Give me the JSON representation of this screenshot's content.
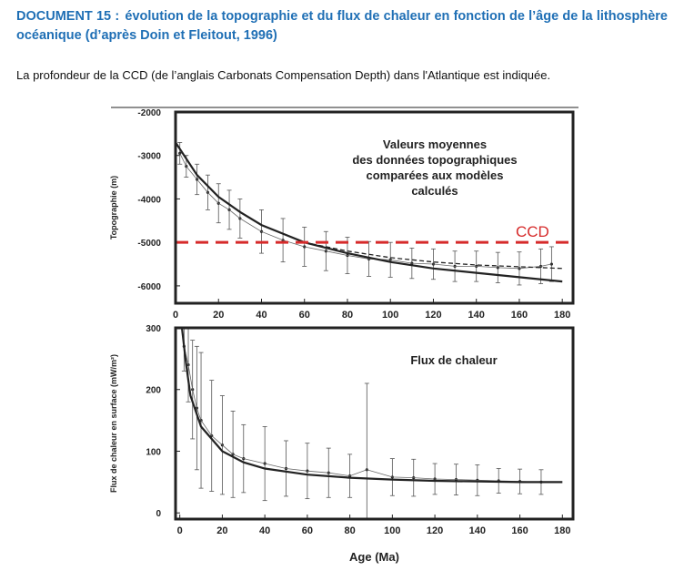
{
  "document": {
    "label": "DOCUMENT 15 :",
    "title": "évolution de la topographie et du flux de chaleur en fonction de l’âge de la lithosphère océanique (d’après Doin et Fleitout, 1996)",
    "intro": "La profondeur de la CCD (de l’anglais Carbonats Compensation Depth) dans l'Atlantique est indiquée."
  },
  "colors": {
    "title": "#1f6fb5",
    "ccd": "#d62b2b",
    "ink": "#222222"
  },
  "chart_data": [
    {
      "type": "line",
      "panel": "top",
      "title": "",
      "annotation": [
        "Valeurs moyennes",
        "des données topographiques",
        "comparées aux modèles",
        "calculés"
      ],
      "xlabel": "",
      "ylabel": "Topographie (m)",
      "xlim": [
        0,
        185
      ],
      "ylim": [
        -6400,
        -2000
      ],
      "xticks": [
        "0",
        "20",
        "40",
        "60",
        "80",
        "100",
        "120",
        "140",
        "160",
        "180"
      ],
      "yticks": [
        "-2000",
        "-3000",
        "-4000",
        "-5000",
        "-6000"
      ],
      "ccd": {
        "label": "CCD",
        "y": -5000
      },
      "series": [
        {
          "style": "mean-with-error-bars",
          "x": [
            2,
            5,
            10,
            15,
            20,
            25,
            30,
            40,
            50,
            60,
            70,
            80,
            90,
            100,
            110,
            120,
            130,
            140,
            150,
            160,
            170,
            175
          ],
          "y": [
            -2950,
            -3250,
            -3550,
            -3850,
            -4100,
            -4250,
            -4450,
            -4750,
            -4950,
            -5100,
            -5200,
            -5300,
            -5380,
            -5400,
            -5480,
            -5500,
            -5550,
            -5550,
            -5580,
            -5600,
            -5550,
            -5500
          ],
          "err": [
            250,
            250,
            350,
            400,
            450,
            450,
            450,
            500,
            500,
            450,
            450,
            420,
            400,
            400,
            350,
            350,
            350,
            350,
            350,
            380,
            400,
            400
          ]
        },
        {
          "style": "model",
          "x": [
            0,
            10,
            20,
            30,
            40,
            60,
            80,
            100,
            120,
            140,
            160,
            180
          ],
          "y": [
            -2700,
            -3450,
            -3950,
            -4300,
            -4600,
            -5000,
            -5250,
            -5450,
            -5600,
            -5700,
            -5800,
            -5900
          ]
        },
        {
          "style": "model-dashed",
          "x": [
            0,
            10,
            20,
            30,
            40,
            60,
            80,
            100,
            120,
            140,
            160,
            180
          ],
          "y": [
            -2700,
            -3450,
            -3950,
            -4300,
            -4600,
            -5000,
            -5200,
            -5350,
            -5450,
            -5520,
            -5560,
            -5600
          ]
        }
      ]
    },
    {
      "type": "line",
      "panel": "bottom",
      "title": "",
      "annotation": [
        "Flux de chaleur"
      ],
      "xlabel": "Age (Ma)",
      "ylabel": "Flux de chaleur en surface (mW/m²)",
      "xlim": [
        -2,
        185
      ],
      "ylim": [
        -10,
        300
      ],
      "xticks": [
        "0",
        "20",
        "40",
        "60",
        "80",
        "100",
        "120",
        "140",
        "160",
        "180"
      ],
      "yticks": [
        "300",
        "200",
        "100",
        "0"
      ],
      "series": [
        {
          "style": "mean-with-error-bars",
          "x": [
            2,
            4,
            6,
            8,
            10,
            15,
            20,
            25,
            30,
            40,
            50,
            60,
            70,
            80,
            88,
            100,
            110,
            120,
            130,
            140,
            150,
            160,
            170
          ],
          "y": [
            270,
            240,
            200,
            170,
            150,
            125,
            110,
            95,
            88,
            80,
            72,
            68,
            65,
            60,
            70,
            58,
            57,
            55,
            54,
            53,
            52,
            51,
            50
          ],
          "err": [
            40,
            60,
            80,
            100,
            110,
            90,
            80,
            70,
            55,
            60,
            45,
            45,
            40,
            35,
            140,
            30,
            30,
            25,
            25,
            25,
            20,
            20,
            20
          ]
        },
        {
          "style": "model",
          "x": [
            1,
            3,
            5,
            10,
            20,
            30,
            40,
            60,
            80,
            100,
            120,
            140,
            160,
            180
          ],
          "y": [
            300,
            240,
            190,
            140,
            100,
            82,
            72,
            62,
            57,
            54,
            52,
            51,
            50,
            50
          ]
        }
      ]
    }
  ]
}
